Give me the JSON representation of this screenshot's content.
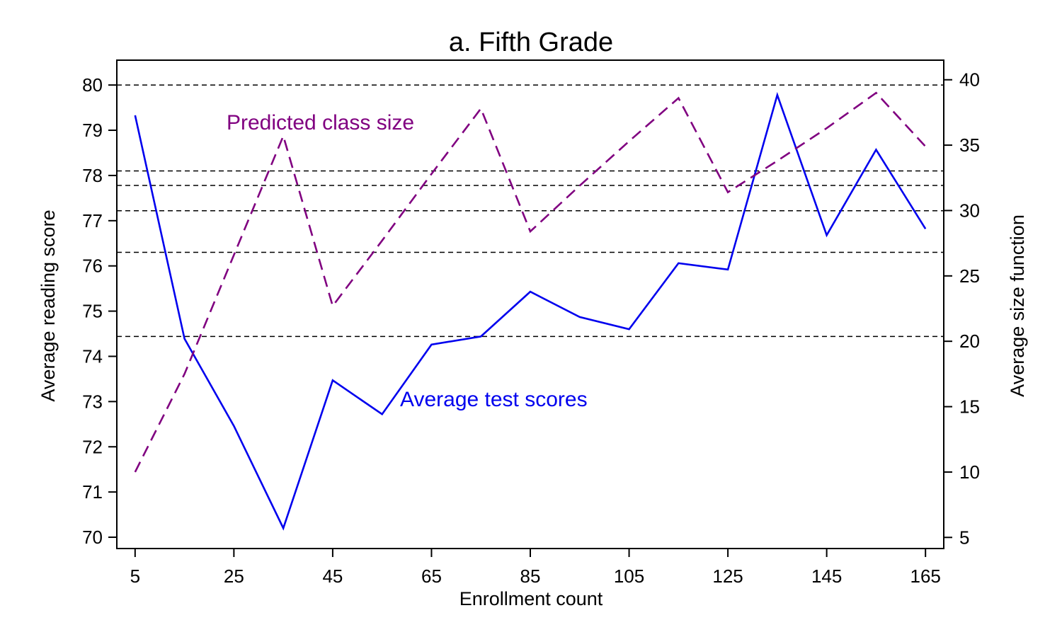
{
  "chart_data": {
    "type": "line",
    "title": "a. Fifth Grade",
    "xlabel": "Enrollment count",
    "ylabel_left": "Average reading score",
    "ylabel_right": "Average size function",
    "x_ticks": [
      "5",
      "25",
      "45",
      "65",
      "85",
      "105",
      "125",
      "145",
      "165"
    ],
    "x_tick_values": [
      5,
      25,
      45,
      65,
      85,
      105,
      125,
      145,
      165
    ],
    "xlim": [
      1.3,
      168.7
    ],
    "y_left_ticks": [
      "70",
      "71",
      "72",
      "73",
      "74",
      "75",
      "76",
      "77",
      "78",
      "79",
      "80"
    ],
    "y_left_tick_values": [
      70,
      71,
      72,
      73,
      74,
      75,
      76,
      77,
      78,
      79,
      80
    ],
    "y_left_lim": [
      69.75,
      80.55
    ],
    "y_right_ticks": [
      "5",
      "10",
      "15",
      "20",
      "25",
      "30",
      "35",
      "40"
    ],
    "y_right_tick_values": [
      5,
      10,
      15,
      20,
      25,
      30,
      35,
      40
    ],
    "y_right_lim": [
      4.15,
      41.5
    ],
    "reference_lines_left": [
      80,
      78.1,
      77.78,
      77.22,
      76.3,
      74.44
    ],
    "reference_line_style": "dashed black",
    "grid": false,
    "series": [
      {
        "name": "Average test scores",
        "axis": "left",
        "color": "#0000ee",
        "style": "solid",
        "x": [
          5,
          15,
          25,
          35,
          45,
          55,
          65,
          75,
          85,
          95,
          105,
          115,
          125,
          135,
          145,
          155,
          165
        ],
        "values": [
          79.33,
          74.39,
          72.46,
          70.2,
          73.47,
          72.72,
          74.26,
          74.44,
          75.43,
          74.87,
          74.6,
          76.06,
          75.92,
          79.78,
          76.68,
          78.57,
          76.82
        ]
      },
      {
        "name": "Predicted class size",
        "axis": "right",
        "color": "#800080",
        "style": "dashed",
        "x": [
          5,
          15,
          25,
          35,
          45,
          55,
          65,
          75,
          85,
          95,
          105,
          115,
          125,
          135,
          145,
          155,
          165
        ],
        "values": [
          10,
          17.5,
          26.6,
          35.7,
          22.7,
          27.7,
          32.8,
          37.8,
          28.4,
          31.9,
          35.3,
          38.6,
          31.4,
          33.8,
          36.3,
          39,
          34.9
        ]
      }
    ],
    "label_color_test": "#0000ee",
    "label_color_size": "#800080"
  }
}
